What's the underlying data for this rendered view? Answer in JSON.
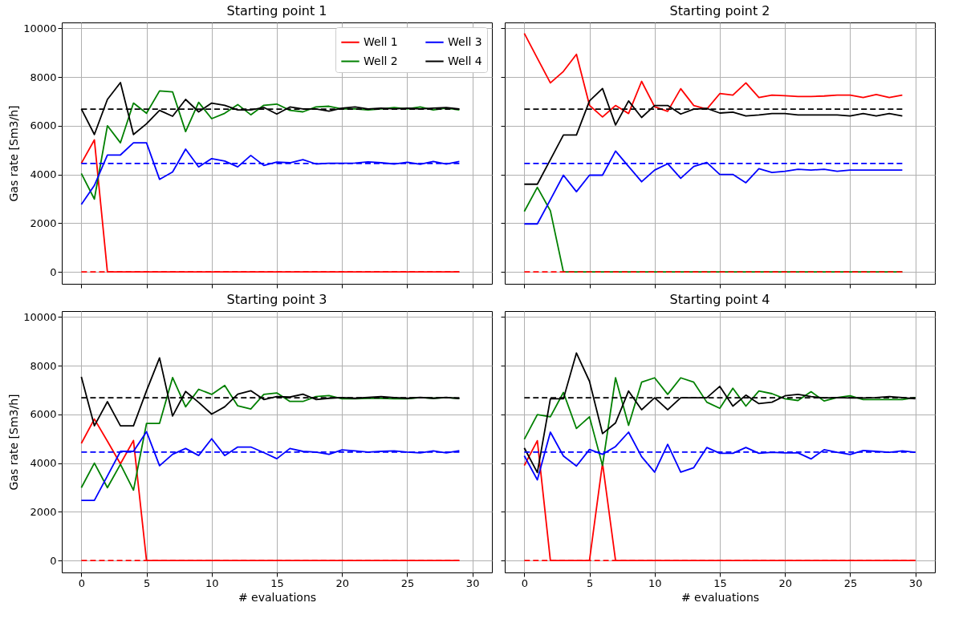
{
  "chart_data": [
    {
      "type": "line",
      "title": "Starting point 1",
      "ylabel": "Gas rate [Sm3/h]",
      "xlim": [
        -1.5,
        31.5
      ],
      "ylim": [
        -490,
        10240
      ],
      "xticks": [
        0,
        5,
        10,
        15,
        20,
        25,
        30
      ],
      "yticks": [
        0,
        2000,
        4000,
        6000,
        8000,
        10000
      ],
      "tick_labels": "y",
      "grid": true,
      "legend": "top right",
      "line_style": "solid",
      "x": [
        0,
        1,
        2,
        3,
        4,
        5,
        6,
        7,
        8,
        9,
        10,
        11,
        12,
        13,
        14,
        15,
        16,
        17,
        18,
        19,
        20,
        21,
        22,
        23,
        24,
        25,
        26,
        27,
        28,
        29
      ],
      "series": [
        {
          "name": "Well 1",
          "color": "#ff0000",
          "values": [
            4460,
            5420,
            0,
            0,
            0,
            0,
            0,
            0,
            0,
            0,
            0,
            0,
            0,
            0,
            0,
            0,
            0,
            0,
            0,
            0,
            0,
            0,
            0,
            0,
            0,
            0,
            0,
            0,
            0,
            0
          ]
        },
        {
          "name": "Well 2",
          "color": "#008000",
          "values": [
            4040,
            2990,
            6000,
            5300,
            6930,
            6510,
            7430,
            7390,
            5760,
            6960,
            6290,
            6510,
            6870,
            6450,
            6840,
            6890,
            6630,
            6570,
            6770,
            6800,
            6690,
            6690,
            6650,
            6690,
            6750,
            6690,
            6770,
            6650,
            6720,
            6650
          ]
        },
        {
          "name": "Well 3",
          "color": "#0000ff",
          "values": [
            2770,
            3550,
            4800,
            4800,
            5300,
            5300,
            3800,
            4100,
            5040,
            4310,
            4650,
            4550,
            4310,
            4780,
            4370,
            4510,
            4480,
            4610,
            4430,
            4460,
            4460,
            4470,
            4520,
            4480,
            4430,
            4500,
            4420,
            4530,
            4430,
            4530
          ]
        },
        {
          "name": "Well 4",
          "color": "#000000",
          "values": [
            6690,
            5640,
            7080,
            7770,
            5640,
            6080,
            6630,
            6390,
            7080,
            6570,
            6930,
            6840,
            6650,
            6650,
            6750,
            6480,
            6770,
            6690,
            6690,
            6600,
            6720,
            6770,
            6690,
            6720,
            6690,
            6720,
            6690,
            6720,
            6750,
            6690
          ]
        },
        {
          "type": "line",
          "color": "#ff0000",
          "line_style": "dashed",
          "x": [
            0,
            29
          ],
          "values": [
            0,
            0
          ]
        },
        {
          "type": "line",
          "color": "#0000ff",
          "line_style": "dashed",
          "x": [
            0,
            29
          ],
          "values": [
            4450,
            4450
          ]
        },
        {
          "type": "line",
          "color": "#000000",
          "line_style": "dashed",
          "x": [
            0,
            29
          ],
          "values": [
            6680,
            6680
          ]
        }
      ]
    },
    {
      "type": "line",
      "title": "Starting point 2",
      "xlim": [
        -1.5,
        31.5
      ],
      "ylim": [
        -490,
        10240
      ],
      "xticks": [
        0,
        5,
        10,
        15,
        20,
        25,
        30
      ],
      "yticks": [
        0,
        2000,
        4000,
        6000,
        8000,
        10000
      ],
      "tick_labels": false,
      "grid": true,
      "line_style": "solid",
      "x": [
        0,
        1,
        2,
        3,
        4,
        5,
        6,
        7,
        8,
        9,
        10,
        11,
        12,
        13,
        14,
        15,
        16,
        17,
        18,
        19,
        20,
        21,
        22,
        23,
        24,
        25,
        26,
        27,
        28,
        29
      ],
      "series": [
        {
          "color": "#ff0000",
          "values": [
            9790,
            8770,
            7760,
            8230,
            8930,
            6840,
            6360,
            6830,
            6500,
            7820,
            6780,
            6590,
            7520,
            6830,
            6680,
            7320,
            7260,
            7760,
            7160,
            7260,
            7230,
            7200,
            7200,
            7220,
            7260,
            7260,
            7160,
            7280,
            7160,
            7260
          ]
        },
        {
          "color": "#008000",
          "values": [
            2480,
            3470,
            2510,
            0,
            0,
            0,
            0,
            0,
            0,
            0,
            0,
            0,
            0,
            0,
            0,
            0,
            0,
            0,
            0,
            0,
            0,
            0,
            0,
            0,
            0,
            0,
            0,
            0,
            0,
            0
          ]
        },
        {
          "color": "#0000ff",
          "values": [
            1970,
            1970,
            2960,
            3970,
            3290,
            3970,
            3970,
            4960,
            4330,
            3700,
            4180,
            4440,
            3840,
            4330,
            4490,
            4000,
            4000,
            3660,
            4240,
            4080,
            4130,
            4210,
            4180,
            4210,
            4130,
            4180,
            4180,
            4180,
            4180,
            4180
          ]
        },
        {
          "color": "#000000",
          "values": [
            3600,
            3600,
            4610,
            5620,
            5620,
            7020,
            7530,
            6030,
            7020,
            6340,
            6830,
            6830,
            6480,
            6680,
            6710,
            6520,
            6560,
            6400,
            6440,
            6500,
            6500,
            6440,
            6440,
            6440,
            6440,
            6400,
            6500,
            6400,
            6500,
            6400
          ]
        },
        {
          "type": "line",
          "color": "#ff0000",
          "line_style": "dashed",
          "x": [
            0,
            29
          ],
          "values": [
            0,
            0
          ]
        },
        {
          "type": "line",
          "color": "#0000ff",
          "line_style": "dashed",
          "x": [
            0,
            29
          ],
          "values": [
            4450,
            4450
          ]
        },
        {
          "type": "line",
          "color": "#000000",
          "line_style": "dashed",
          "x": [
            0,
            29
          ],
          "values": [
            6680,
            6680
          ]
        }
      ]
    },
    {
      "type": "line",
      "title": "Starting point 3",
      "xlabel": "# evaluations",
      "ylabel": "Gas rate [Sm3/h]",
      "xlim": [
        -1.5,
        31.5
      ],
      "ylim": [
        -490,
        10240
      ],
      "xticks": [
        0,
        5,
        10,
        15,
        20,
        25,
        30
      ],
      "yticks": [
        0,
        2000,
        4000,
        6000,
        8000,
        10000
      ],
      "grid": true,
      "line_style": "solid",
      "x": [
        0,
        1,
        2,
        3,
        4,
        5,
        6,
        7,
        8,
        9,
        10,
        11,
        12,
        13,
        14,
        15,
        16,
        17,
        18,
        19,
        20,
        21,
        22,
        23,
        24,
        25,
        26,
        27,
        28,
        29
      ],
      "series": [
        {
          "color": "#ff0000",
          "values": [
            4810,
            5810,
            4900,
            3970,
            4930,
            0,
            0,
            0,
            0,
            0,
            0,
            0,
            0,
            0,
            0,
            0,
            0,
            0,
            0,
            0,
            0,
            0,
            0,
            0,
            0,
            0,
            0,
            0,
            0,
            0
          ]
        },
        {
          "color": "#008000",
          "values": [
            2990,
            4000,
            2990,
            3950,
            2890,
            5630,
            5630,
            7510,
            6310,
            7030,
            6820,
            7190,
            6350,
            6220,
            6820,
            6880,
            6530,
            6530,
            6730,
            6770,
            6640,
            6640,
            6660,
            6660,
            6640,
            6640,
            6690,
            6660,
            6690,
            6650
          ]
        },
        {
          "color": "#0000ff",
          "values": [
            2470,
            2470,
            3470,
            4480,
            4480,
            5290,
            3890,
            4360,
            4600,
            4310,
            5000,
            4310,
            4660,
            4660,
            4430,
            4180,
            4600,
            4480,
            4450,
            4360,
            4540,
            4500,
            4450,
            4480,
            4500,
            4450,
            4420,
            4500,
            4420,
            4510
          ]
        },
        {
          "color": "#000000",
          "values": [
            7540,
            5530,
            6520,
            5530,
            5530,
            6970,
            8320,
            5930,
            6940,
            6490,
            6010,
            6310,
            6830,
            6970,
            6610,
            6730,
            6710,
            6830,
            6610,
            6660,
            6690,
            6660,
            6700,
            6730,
            6690,
            6660,
            6700,
            6660,
            6700,
            6650
          ]
        },
        {
          "type": "line",
          "color": "#ff0000",
          "line_style": "dashed",
          "x": [
            0,
            29
          ],
          "values": [
            0,
            0
          ]
        },
        {
          "type": "line",
          "color": "#0000ff",
          "line_style": "dashed",
          "x": [
            0,
            29
          ],
          "values": [
            4450,
            4450
          ]
        },
        {
          "type": "line",
          "color": "#000000",
          "line_style": "dashed",
          "x": [
            0,
            29
          ],
          "values": [
            6680,
            6680
          ]
        }
      ]
    },
    {
      "type": "line",
      "title": "Starting point 4",
      "xlabel": "# evaluations",
      "xlim": [
        -1.5,
        31.5
      ],
      "ylim": [
        -490,
        10240
      ],
      "xticks": [
        0,
        5,
        10,
        15,
        20,
        25,
        30
      ],
      "yticks": [
        0,
        2000,
        4000,
        6000,
        8000,
        10000
      ],
      "tick_labels": "x",
      "grid": true,
      "line_style": "solid",
      "x": [
        0,
        1,
        2,
        3,
        4,
        5,
        6,
        7,
        8,
        9,
        10,
        11,
        12,
        13,
        14,
        15,
        16,
        17,
        18,
        19,
        20,
        21,
        22,
        23,
        24,
        25,
        26,
        27,
        28,
        29,
        30
      ],
      "series": [
        {
          "color": "#ff0000",
          "values": [
            3900,
            4920,
            0,
            0,
            0,
            0,
            4000,
            0,
            0,
            0,
            0,
            0,
            0,
            0,
            0,
            0,
            0,
            0,
            0,
            0,
            0,
            0,
            0,
            0,
            0,
            0,
            0,
            0,
            0,
            0,
            0
          ]
        },
        {
          "color": "#008000",
          "values": [
            4980,
            5990,
            5900,
            6900,
            5420,
            5900,
            3900,
            7500,
            5550,
            7320,
            7500,
            6820,
            7500,
            7320,
            6500,
            6250,
            7070,
            6340,
            6960,
            6850,
            6640,
            6570,
            6930,
            6550,
            6690,
            6760,
            6610,
            6610,
            6610,
            6610,
            6690
          ]
        },
        {
          "color": "#0000ff",
          "values": [
            4300,
            3310,
            5270,
            4290,
            3880,
            4560,
            4360,
            4680,
            5270,
            4260,
            3630,
            4770,
            3630,
            3810,
            4640,
            4400,
            4400,
            4640,
            4400,
            4440,
            4420,
            4420,
            4170,
            4550,
            4440,
            4350,
            4520,
            4480,
            4440,
            4500,
            4440
          ]
        },
        {
          "color": "#000000",
          "values": [
            4620,
            3610,
            6640,
            6640,
            8520,
            7360,
            5210,
            5650,
            6960,
            6190,
            6680,
            6190,
            6680,
            6680,
            6680,
            7150,
            6340,
            6790,
            6440,
            6500,
            6760,
            6820,
            6730,
            6670,
            6690,
            6670,
            6670,
            6690,
            6730,
            6690,
            6640
          ]
        },
        {
          "type": "line",
          "color": "#ff0000",
          "line_style": "dashed",
          "x": [
            0,
            30
          ],
          "values": [
            0,
            0
          ]
        },
        {
          "type": "line",
          "color": "#0000ff",
          "line_style": "dashed",
          "x": [
            0,
            30
          ],
          "values": [
            4450,
            4450
          ]
        },
        {
          "type": "line",
          "color": "#000000",
          "line_style": "dashed",
          "x": [
            0,
            30
          ],
          "values": [
            6680,
            6680
          ]
        }
      ]
    }
  ]
}
